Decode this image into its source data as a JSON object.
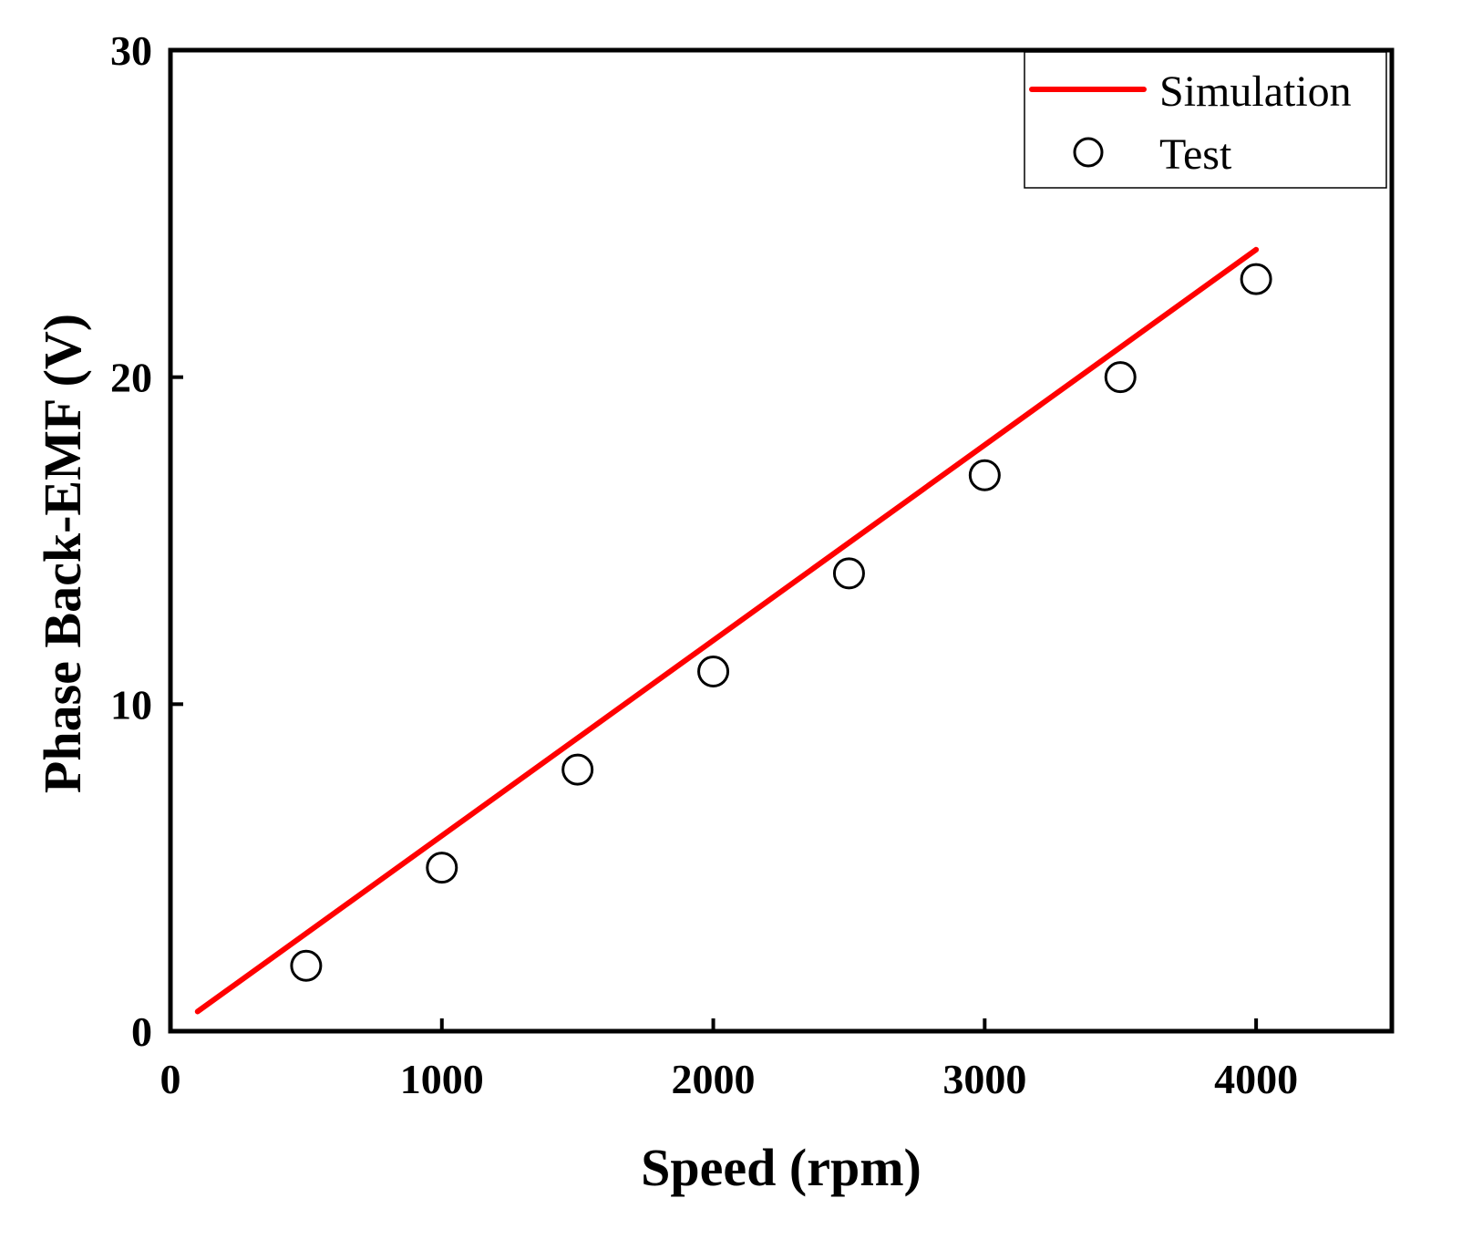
{
  "chart_data": {
    "type": "line",
    "title": "",
    "xlabel": "Speed (rpm)",
    "ylabel": "Phase Back-EMF (V)",
    "xlim": [
      0,
      4500
    ],
    "ylim": [
      0,
      30
    ],
    "xticks": [
      0,
      1000,
      2000,
      3000,
      4000
    ],
    "yticks": [
      0,
      10,
      20,
      30
    ],
    "xtick_labels": [
      "0",
      "1000",
      "2000",
      "3000",
      "4000"
    ],
    "ytick_labels": [
      "0",
      "10",
      "20",
      "30"
    ],
    "grid": false,
    "legend_position": "top-right",
    "series": [
      {
        "name": "Simulation",
        "kind": "line",
        "color": "#ff0000",
        "x": [
          100,
          4000
        ],
        "y": [
          0.6,
          23.9
        ]
      },
      {
        "name": "Test",
        "kind": "scatter",
        "marker": "open-circle",
        "color": "#000000",
        "x": [
          500,
          1000,
          1500,
          2000,
          2500,
          3000,
          3500,
          4000
        ],
        "y": [
          2,
          5,
          8,
          11,
          14,
          17,
          20,
          23
        ]
      }
    ]
  }
}
